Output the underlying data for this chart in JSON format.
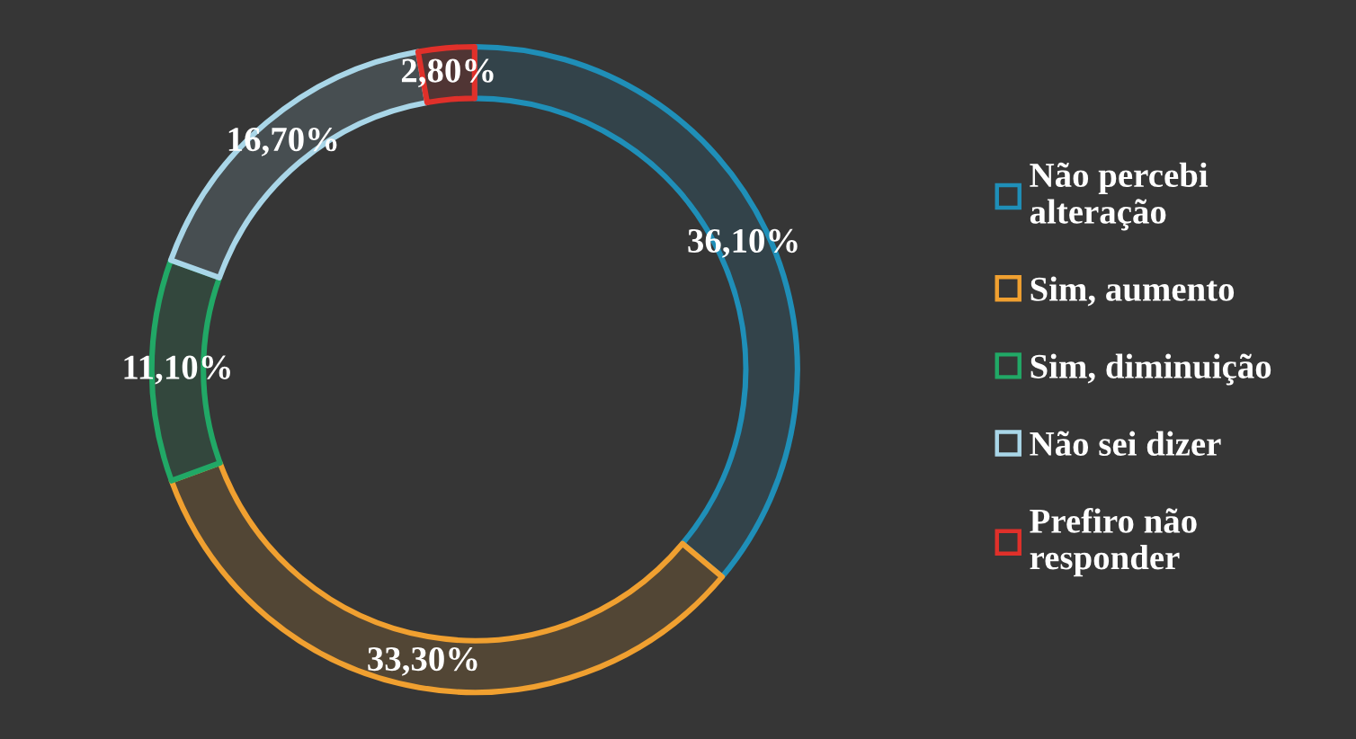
{
  "chart_data": {
    "type": "donut",
    "categories": [
      "Não percebi\nalteração",
      "Sim, aumento",
      "Sim, diminuição",
      "Não sei dizer",
      "Prefiro não\nresponder"
    ],
    "values": [
      36.1,
      33.3,
      11.1,
      16.7,
      2.8
    ],
    "value_labels": [
      "36,10%",
      "33,30%",
      "11,10%",
      "16,70%",
      "2,80%"
    ],
    "colors": [
      "#1f8fb8",
      "#f0a030",
      "#21a866",
      "#a9d6e8",
      "#e0302a"
    ],
    "legend": "right"
  }
}
